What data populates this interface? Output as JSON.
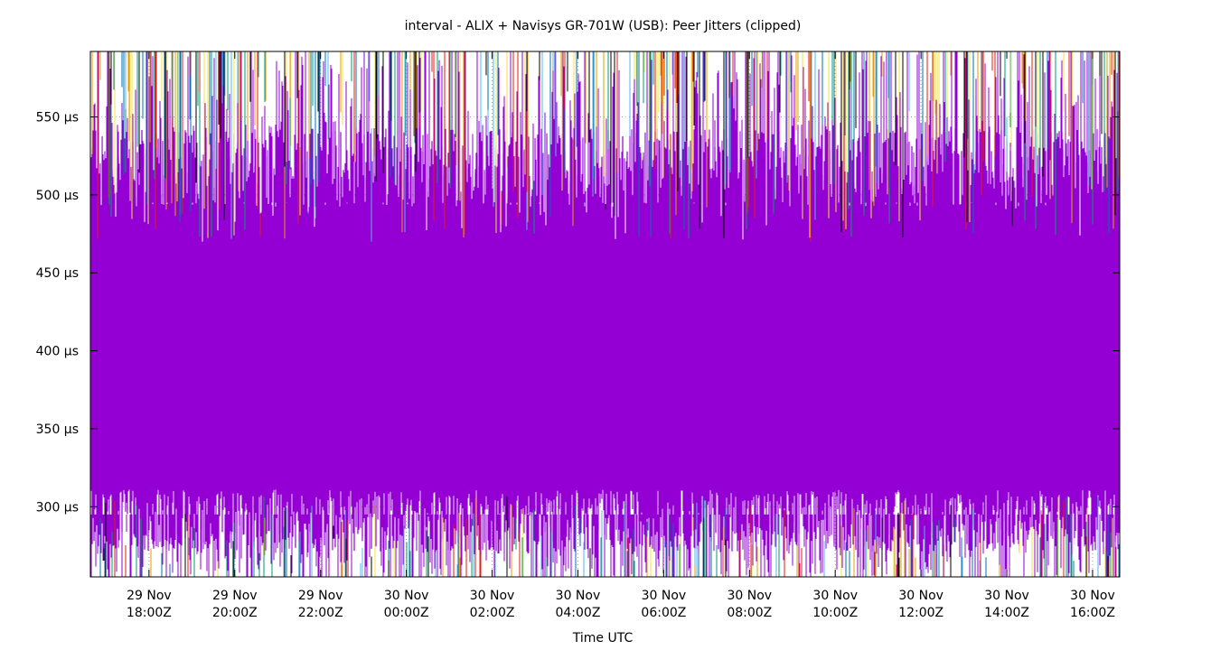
{
  "chart_data": {
    "type": "line",
    "title": "interval - ALIX + Navisys GR-701W (USB): Peer Jitters (clipped)",
    "xlabel": "Time UTC",
    "ylabel": "",
    "x_range": [
      "29 Nov 16:38Z",
      "30 Nov 16:38Z"
    ],
    "ylim": [
      255,
      592
    ],
    "y_ticks": [
      {
        "value": 300,
        "label": "300 µs"
      },
      {
        "value": 350,
        "label": "350 µs"
      },
      {
        "value": 400,
        "label": "400 µs"
      },
      {
        "value": 450,
        "label": "450 µs"
      },
      {
        "value": 500,
        "label": "500 µs"
      },
      {
        "value": 550,
        "label": "550 µs"
      }
    ],
    "x_ticks": [
      {
        "hours": 1.367,
        "line1": "29 Nov",
        "line2": "18:00Z"
      },
      {
        "hours": 3.367,
        "line1": "29 Nov",
        "line2": "20:00Z"
      },
      {
        "hours": 5.367,
        "line1": "29 Nov",
        "line2": "22:00Z"
      },
      {
        "hours": 7.367,
        "line1": "30 Nov",
        "line2": "00:00Z"
      },
      {
        "hours": 9.367,
        "line1": "30 Nov",
        "line2": "02:00Z"
      },
      {
        "hours": 11.367,
        "line1": "30 Nov",
        "line2": "04:00Z"
      },
      {
        "hours": 13.367,
        "line1": "30 Nov",
        "line2": "06:00Z"
      },
      {
        "hours": 15.367,
        "line1": "30 Nov",
        "line2": "08:00Z"
      },
      {
        "hours": 17.367,
        "line1": "30 Nov",
        "line2": "10:00Z"
      },
      {
        "hours": 19.367,
        "line1": "30 Nov",
        "line2": "12:00Z"
      },
      {
        "hours": 21.367,
        "line1": "30 Nov",
        "line2": "14:00Z"
      },
      {
        "hours": 23.367,
        "line1": "30 Nov",
        "line2": "16:00Z"
      }
    ],
    "x_span_hours": 24,
    "grid": true,
    "dominant_band": {
      "low": 285,
      "high": 515,
      "color": "#9400d3"
    },
    "series_colors": [
      "#9400d3",
      "#009e73",
      "#56b4e9",
      "#e69f00",
      "#f0e442",
      "#0072b2",
      "#e51e10",
      "#000000"
    ]
  }
}
